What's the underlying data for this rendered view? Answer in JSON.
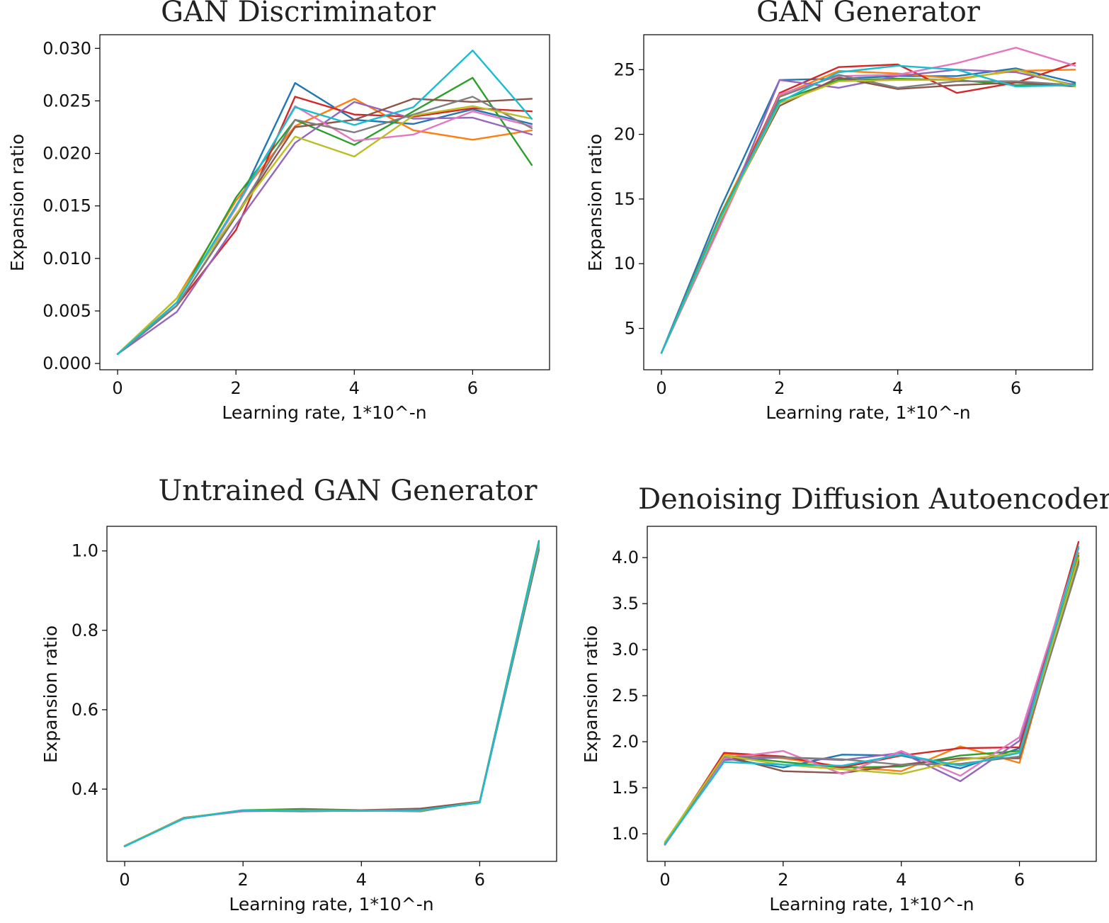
{
  "palette": [
    "#1f77b4",
    "#ff7f0e",
    "#2ca02c",
    "#d62728",
    "#9467bd",
    "#8c564b",
    "#e377c2",
    "#7f7f7f",
    "#bcbd22",
    "#17becf"
  ],
  "chart_data": [
    {
      "type": "line",
      "title": "GAN Discriminator",
      "xlabel": "Learning rate, 1*10^-n",
      "ylabel": "Expansion ratio",
      "x": [
        0,
        1,
        2,
        3,
        4,
        5,
        6,
        7
      ],
      "xlim": [
        -0.3,
        7.3
      ],
      "ylim": [
        -0.0006,
        0.0313
      ],
      "xticks": [
        0,
        2,
        4,
        6
      ],
      "xtick_labels": [
        "0",
        "2",
        "4",
        "6"
      ],
      "yticks": [
        0,
        0.005,
        0.01,
        0.015,
        0.02,
        0.025,
        0.03
      ],
      "ytick_labels": [
        "0.000",
        "0.005",
        "0.010",
        "0.015",
        "0.020",
        "0.025",
        "0.030"
      ],
      "grid": false,
      "series": [
        {
          "values": [
            0.0009,
            0.0058,
            0.0148,
            0.0267,
            0.0232,
            0.0228,
            0.0242,
            0.0228
          ]
        },
        {
          "values": [
            0.0009,
            0.0062,
            0.0155,
            0.0226,
            0.0252,
            0.0222,
            0.0213,
            0.0222
          ]
        },
        {
          "values": [
            0.0009,
            0.0058,
            0.0158,
            0.0232,
            0.0208,
            0.024,
            0.0272,
            0.0189
          ]
        },
        {
          "values": [
            0.0009,
            0.0055,
            0.0127,
            0.0254,
            0.0237,
            0.0235,
            0.0243,
            0.024
          ]
        },
        {
          "values": [
            0.0009,
            0.0049,
            0.0132,
            0.021,
            0.0249,
            0.0233,
            0.0234,
            0.0218
          ]
        },
        {
          "values": [
            0.0009,
            0.0055,
            0.014,
            0.0225,
            0.0232,
            0.0252,
            0.0249,
            0.0252
          ]
        },
        {
          "values": [
            0.0009,
            0.0058,
            0.0148,
            0.0245,
            0.0212,
            0.0218,
            0.024,
            0.0226
          ]
        },
        {
          "values": [
            0.0009,
            0.0055,
            0.0141,
            0.0232,
            0.022,
            0.0237,
            0.0254,
            0.0224
          ]
        },
        {
          "values": [
            0.0009,
            0.0062,
            0.0142,
            0.0216,
            0.0197,
            0.0236,
            0.0245,
            0.0233
          ]
        },
        {
          "values": [
            0.0009,
            0.0058,
            0.015,
            0.0244,
            0.0227,
            0.0244,
            0.0298,
            0.0233
          ]
        }
      ]
    },
    {
      "type": "line",
      "title": "GAN Generator",
      "xlabel": "Learning rate, 1*10^-n",
      "ylabel": "Expansion ratio",
      "x": [
        0,
        1,
        2,
        3,
        4,
        5,
        6,
        7
      ],
      "xlim": [
        -0.3,
        7.3
      ],
      "ylim": [
        1.8,
        27.7
      ],
      "xticks": [
        0,
        2,
        4,
        6
      ],
      "xtick_labels": [
        "0",
        "2",
        "4",
        "6"
      ],
      "yticks": [
        5,
        10,
        15,
        20,
        25
      ],
      "ytick_labels": [
        "5",
        "10",
        "15",
        "20",
        "25"
      ],
      "grid": false,
      "series": [
        {
          "values": [
            3.1,
            14.3,
            24.2,
            24.3,
            24.5,
            24.5,
            25.1,
            24.0
          ]
        },
        {
          "values": [
            3.1,
            13.8,
            23.0,
            24.9,
            24.7,
            24.3,
            24.9,
            25.0
          ]
        },
        {
          "values": [
            3.1,
            13.7,
            22.6,
            24.2,
            24.3,
            24.2,
            23.8,
            23.9
          ]
        },
        {
          "values": [
            3.1,
            13.2,
            23.2,
            25.2,
            25.4,
            23.2,
            24.0,
            25.5
          ]
        },
        {
          "values": [
            3.1,
            13.0,
            24.2,
            23.6,
            24.5,
            25.0,
            24.8,
            23.8
          ]
        },
        {
          "values": [
            3.1,
            13.5,
            22.2,
            24.4,
            23.5,
            23.8,
            24.0,
            23.7
          ]
        },
        {
          "values": [
            3.1,
            13.0,
            23.1,
            24.5,
            24.6,
            25.5,
            26.7,
            25.3
          ]
        },
        {
          "values": [
            3.1,
            13.3,
            22.9,
            24.6,
            23.6,
            24.1,
            24.1,
            23.8
          ]
        },
        {
          "values": [
            3.1,
            13.4,
            22.4,
            24.1,
            24.2,
            24.2,
            25.0,
            23.7
          ]
        },
        {
          "values": [
            3.1,
            13.6,
            22.5,
            24.8,
            25.3,
            25.0,
            23.7,
            23.8
          ]
        }
      ]
    },
    {
      "type": "line",
      "title": "Untrained GAN Generator",
      "xlabel": "Learning rate, 1*10^-n",
      "ylabel": "Expansion ratio",
      "x": [
        0,
        1,
        2,
        3,
        4,
        5,
        6,
        7
      ],
      "xlim": [
        -0.3,
        7.3
      ],
      "ylim": [
        0.218,
        1.062
      ],
      "xticks": [
        0,
        2,
        4,
        6
      ],
      "xtick_labels": [
        "0",
        "2",
        "4",
        "6"
      ],
      "yticks": [
        0.4,
        0.6,
        0.8,
        1.0
      ],
      "ytick_labels": [
        "0.4",
        "0.6",
        "0.8",
        "1.0"
      ],
      "grid": false,
      "series": [
        {
          "values": [
            0.256,
            0.326,
            0.346,
            0.345,
            0.345,
            0.347,
            0.366,
            1.002
          ]
        },
        {
          "values": [
            0.256,
            0.327,
            0.346,
            0.344,
            0.346,
            0.348,
            0.367,
            1.015
          ]
        },
        {
          "values": [
            0.257,
            0.327,
            0.347,
            0.35,
            0.347,
            0.346,
            0.368,
            1.025
          ]
        },
        {
          "values": [
            0.256,
            0.328,
            0.345,
            0.345,
            0.346,
            0.349,
            0.367,
            1.01
          ]
        },
        {
          "values": [
            0.256,
            0.326,
            0.346,
            0.346,
            0.345,
            0.347,
            0.367,
            1.008
          ]
        },
        {
          "values": [
            0.257,
            0.328,
            0.345,
            0.347,
            0.347,
            0.351,
            0.369,
            1.02
          ]
        },
        {
          "values": [
            0.256,
            0.327,
            0.344,
            0.346,
            0.346,
            0.347,
            0.366,
            1.012
          ]
        },
        {
          "values": [
            0.256,
            0.327,
            0.346,
            0.344,
            0.346,
            0.344,
            0.368,
            1.005
          ]
        },
        {
          "values": [
            0.257,
            0.327,
            0.347,
            0.346,
            0.345,
            0.346,
            0.367,
            1.018
          ]
        },
        {
          "values": [
            0.256,
            0.326,
            0.347,
            0.345,
            0.345,
            0.347,
            0.366,
            1.022
          ]
        }
      ]
    },
    {
      "type": "line",
      "title": "Denoising Diffusion Autoencoder",
      "xlabel": "Learning rate, 1*10^-n",
      "ylabel": "Expansion ratio",
      "x": [
        0,
        1,
        2,
        3,
        4,
        5,
        6,
        7
      ],
      "xlim": [
        -0.3,
        7.3
      ],
      "ylim": [
        0.7,
        4.34
      ],
      "xticks": [
        0,
        2,
        4,
        6
      ],
      "xtick_labels": [
        "0",
        "2",
        "4",
        "6"
      ],
      "yticks": [
        1.0,
        1.5,
        2.0,
        2.5,
        3.0,
        3.5,
        4.0
      ],
      "ytick_labels": [
        "1.0",
        "1.5",
        "2.0",
        "2.5",
        "3.0",
        "3.5",
        "4.0"
      ],
      "grid": false,
      "series": [
        {
          "values": [
            0.88,
            1.82,
            1.72,
            1.86,
            1.85,
            1.71,
            1.93,
            3.98
          ]
        },
        {
          "values": [
            0.9,
            1.87,
            1.82,
            1.73,
            1.68,
            1.95,
            1.77,
            4.05
          ]
        },
        {
          "values": [
            0.89,
            1.85,
            1.78,
            1.72,
            1.73,
            1.85,
            1.9,
            4.02
          ]
        },
        {
          "values": [
            0.89,
            1.88,
            1.84,
            1.72,
            1.85,
            1.93,
            1.94,
            4.17
          ]
        },
        {
          "values": [
            0.88,
            1.8,
            1.83,
            1.8,
            1.88,
            1.57,
            2.01,
            3.95
          ]
        },
        {
          "values": [
            0.89,
            1.85,
            1.68,
            1.66,
            1.75,
            1.82,
            1.82,
            3.96
          ]
        },
        {
          "values": [
            0.88,
            1.82,
            1.9,
            1.65,
            1.9,
            1.63,
            2.05,
            4.1
          ]
        },
        {
          "values": [
            0.89,
            1.84,
            1.83,
            1.81,
            1.75,
            1.76,
            1.84,
            3.93
          ]
        },
        {
          "values": [
            0.91,
            1.85,
            1.75,
            1.7,
            1.65,
            1.8,
            1.88,
            4.0
          ]
        },
        {
          "values": [
            0.89,
            1.78,
            1.75,
            1.74,
            1.86,
            1.74,
            1.88,
            4.12
          ]
        }
      ]
    }
  ]
}
